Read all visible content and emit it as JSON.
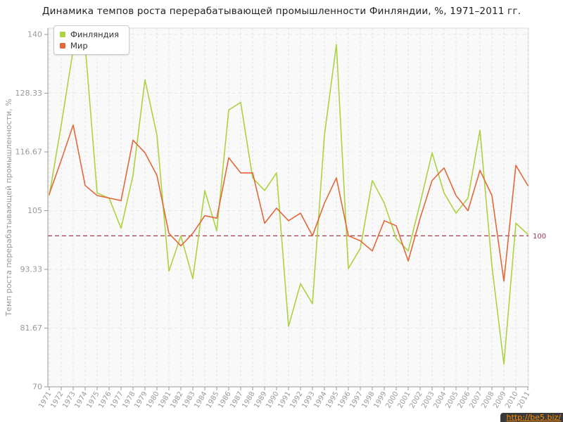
{
  "title": "Динамика темпов роста перерабатывающей промышленности Финляндии, %, 1971–2011 гг.",
  "legend": [
    {
      "label": "Финляндия",
      "color": "#aed13f"
    },
    {
      "label": "Мир",
      "color": "#e2683a"
    }
  ],
  "watermark": "http://be5.biz/",
  "guide": {
    "value": 100,
    "label": "100",
    "color": "#993a4e"
  },
  "colors": {
    "finland_line": "#aed13f",
    "world_line": "#e2683a",
    "guide_line": "#993a4e",
    "axis": "#9a9a9a",
    "tick_label": "#999999",
    "grid": "#e3e3e3",
    "plot_bg": "#f9f9f9"
  },
  "y_axis": {
    "title": "Темп роста перерабатывающей промышленности, %"
  },
  "chart_data": {
    "type": "line",
    "title": "Динамика темпов роста перерабатывающей промышленности Финляндии, %, 1971–2011 гг.",
    "xlabel": "",
    "ylabel": "Темп роста перерабатывающей промышленности, %",
    "ylim": [
      70,
      140
    ],
    "yticks": [
      140,
      128.33,
      116.67,
      105,
      93.33,
      81.67,
      70
    ],
    "ytick_labels": [
      "140",
      "128.33",
      "116.67",
      "105",
      "93.33",
      "81.67",
      "70"
    ],
    "grid": true,
    "legend_position": "top-left",
    "guide_line": 100,
    "x": [
      1971,
      1972,
      1973,
      1974,
      1975,
      1976,
      1977,
      1978,
      1979,
      1980,
      1981,
      1982,
      1983,
      1984,
      1985,
      1986,
      1987,
      1988,
      1989,
      1990,
      1991,
      1992,
      1993,
      1994,
      1995,
      1996,
      1997,
      1998,
      1999,
      2000,
      2001,
      2002,
      2003,
      2004,
      2005,
      2006,
      2007,
      2008,
      2009,
      2010,
      2011
    ],
    "series": [
      {
        "name": "Финляндия",
        "color": "#aed13f",
        "values": [
          108,
          122,
          137,
          138,
          108.5,
          107.5,
          101.5,
          112,
          131,
          120,
          93,
          100,
          91.5,
          109,
          101,
          125,
          126.5,
          111.5,
          109,
          112.5,
          82,
          90.5,
          86.5,
          120,
          138,
          93.5,
          97.5,
          111,
          106.5,
          99.5,
          97,
          106.5,
          116.5,
          108.5,
          104.5,
          107.5,
          121,
          94,
          74.5,
          102.5,
          100.3
        ]
      },
      {
        "name": "Мир",
        "color": "#e2683a",
        "values": [
          108.3,
          115,
          122,
          110,
          108,
          107.5,
          107,
          119,
          116.5,
          112,
          100.5,
          98,
          100.5,
          104,
          103.5,
          115.5,
          112.5,
          112.5,
          102.5,
          105.5,
          103,
          104.5,
          100,
          106.5,
          111.5,
          100,
          99,
          97,
          103,
          102,
          95,
          103.5,
          111,
          113.5,
          108,
          105,
          113,
          108,
          91,
          114,
          110
        ]
      }
    ]
  }
}
